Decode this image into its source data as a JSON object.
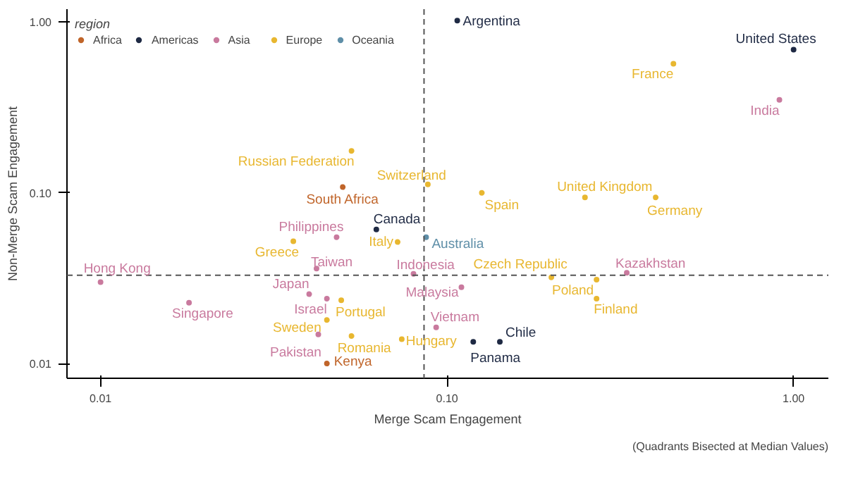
{
  "chart_data": {
    "type": "scatter",
    "xlabel": "Merge Scam Engagement",
    "ylabel": "Non-Merge Scam Engagement",
    "legend_title": "region",
    "log": "xy",
    "grid": false,
    "legend": "top left",
    "marker": "circle",
    "xlim": [
      0.008,
      1.26
    ],
    "ylim": [
      0.0082,
      1.19
    ],
    "xticks": [
      0.01,
      {
        "value": 0.1,
        "label": "0.10"
      },
      {
        "value": 1,
        "label": "1.00"
      }
    ],
    "yticks": [
      0.01,
      {
        "value": 0.1,
        "label": "0.10"
      },
      {
        "value": 1,
        "label": "1.00"
      }
    ],
    "series": [
      {
        "name": "Africa",
        "color": "#c0652a",
        "x": [
          0.05,
          0.045
        ],
        "values": [
          0.108,
          0.01
        ]
      },
      {
        "name": "Americas",
        "color": "#1f2a44",
        "x": [
          0.107,
          1.0,
          0.0625,
          0.142,
          0.119
        ],
        "values": [
          1.02,
          0.69,
          0.061,
          0.0134,
          0.0134
        ]
      },
      {
        "name": "Asia",
        "color": "#c97a9e",
        "x": [
          0.91,
          0.048,
          0.042,
          0.08,
          0.11,
          0.093,
          0.33,
          0.01,
          0.018,
          0.04,
          0.045,
          0.0425
        ],
        "values": [
          0.35,
          0.055,
          0.036,
          0.0335,
          0.028,
          0.0163,
          0.034,
          0.03,
          0.0227,
          0.0255,
          0.024,
          0.0148
        ]
      },
      {
        "name": "Europe",
        "color": "#e8b730",
        "x": [
          0.45,
          0.053,
          0.088,
          0.036,
          0.072,
          0.126,
          0.25,
          0.4,
          0.2,
          0.27,
          0.27,
          0.074,
          0.0495,
          0.045,
          0.053
        ],
        "values": [
          0.57,
          0.176,
          0.112,
          0.052,
          0.0515,
          0.1,
          0.094,
          0.094,
          0.032,
          0.031,
          0.024,
          0.0139,
          0.0235,
          0.018,
          0.0145
        ]
      },
      {
        "name": "Oceania",
        "color": "#5f8fa8",
        "x": [
          0.087
        ],
        "values": [
          0.055
        ]
      }
    ],
    "ref_lines": [
      {
        "axis": "x",
        "value": 0.0858,
        "color": "#555555",
        "line_style": "dashed"
      },
      {
        "axis": "y",
        "value": 0.0329,
        "color": "#555555",
        "line_style": "dashed"
      }
    ],
    "annotations": [
      {
        "text": "South Africa",
        "x": 0.05,
        "y": 0.108
      },
      {
        "text": "Kenya",
        "x": 0.045,
        "y": 0.01
      },
      {
        "text": "Argentina",
        "x": 0.107,
        "y": 1.02
      },
      {
        "text": "United States",
        "x": 1.0,
        "y": 0.69
      },
      {
        "text": "Canada",
        "x": 0.0625,
        "y": 0.061
      },
      {
        "text": "Chile",
        "x": 0.142,
        "y": 0.0134
      },
      {
        "text": "Panama",
        "x": 0.119,
        "y": 0.0134
      },
      {
        "text": "India",
        "x": 0.91,
        "y": 0.35
      },
      {
        "text": "Philippines",
        "x": 0.048,
        "y": 0.055
      },
      {
        "text": "Taiwan",
        "x": 0.042,
        "y": 0.036
      },
      {
        "text": "Indonesia",
        "x": 0.08,
        "y": 0.0335
      },
      {
        "text": "Malaysia",
        "x": 0.11,
        "y": 0.028
      },
      {
        "text": "Vietnam",
        "x": 0.093,
        "y": 0.0163
      },
      {
        "text": "Kazakhstan",
        "x": 0.33,
        "y": 0.034
      },
      {
        "text": "Hong Kong",
        "x": 0.01,
        "y": 0.03
      },
      {
        "text": "Singapore",
        "x": 0.018,
        "y": 0.0227
      },
      {
        "text": "Japan",
        "x": 0.04,
        "y": 0.0255
      },
      {
        "text": "Israel",
        "x": 0.045,
        "y": 0.024
      },
      {
        "text": "Pakistan",
        "x": 0.0425,
        "y": 0.0148
      },
      {
        "text": "France",
        "x": 0.45,
        "y": 0.57
      },
      {
        "text": "Russian Federation",
        "x": 0.053,
        "y": 0.176
      },
      {
        "text": "Switzerland",
        "x": 0.088,
        "y": 0.112
      },
      {
        "text": "Greece",
        "x": 0.036,
        "y": 0.052
      },
      {
        "text": "Italy",
        "x": 0.072,
        "y": 0.0515
      },
      {
        "text": "Spain",
        "x": 0.126,
        "y": 0.1
      },
      {
        "text": "United Kingdom",
        "x": 0.25,
        "y": 0.094
      },
      {
        "text": "Germany",
        "x": 0.4,
        "y": 0.094
      },
      {
        "text": "Czech Republic",
        "x": 0.2,
        "y": 0.032
      },
      {
        "text": "Poland",
        "x": 0.27,
        "y": 0.031
      },
      {
        "text": "Finland",
        "x": 0.27,
        "y": 0.024
      },
      {
        "text": "Hungary",
        "x": 0.074,
        "y": 0.0139
      },
      {
        "text": "Portugal",
        "x": 0.0495,
        "y": 0.0235
      },
      {
        "text": "Sweden",
        "x": 0.045,
        "y": 0.018
      },
      {
        "text": "Romania",
        "x": 0.053,
        "y": 0.0145
      },
      {
        "text": "Australia",
        "x": 0.087,
        "y": 0.055
      },
      "(Quadrants Bisected at Median Values)"
    ]
  }
}
